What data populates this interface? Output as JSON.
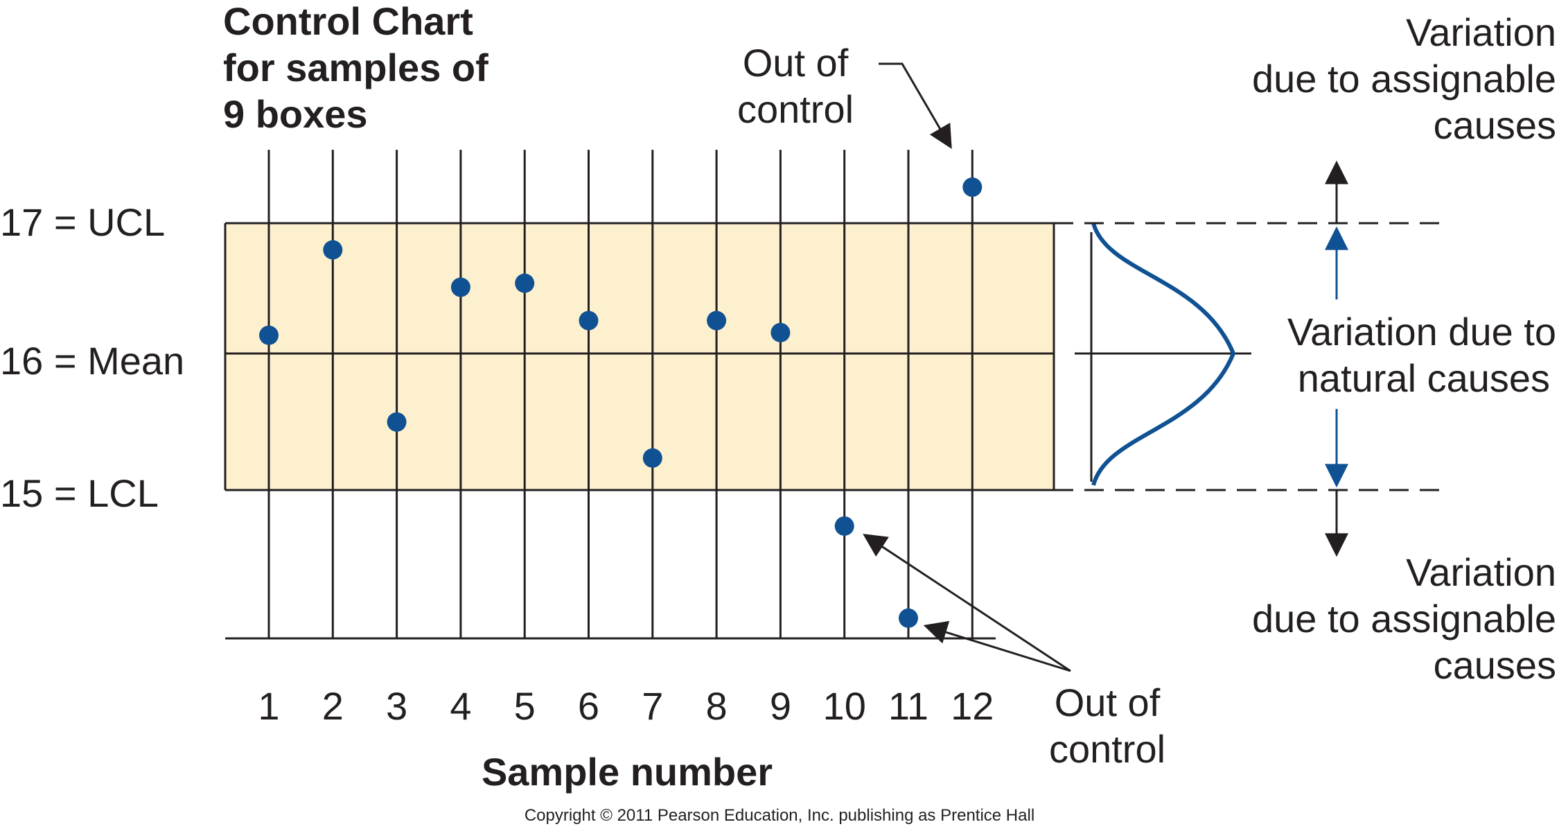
{
  "chart_data": {
    "type": "scatter",
    "title_lines": [
      "Control Chart",
      "for samples of",
      "9 boxes"
    ],
    "xlabel": "Sample number",
    "categories": [
      "1",
      "2",
      "3",
      "4",
      "5",
      "6",
      "7",
      "8",
      "9",
      "10",
      "11",
      "12"
    ],
    "values": [
      16.16,
      16.8,
      15.51,
      16.52,
      16.55,
      16.27,
      15.24,
      16.27,
      16.18,
      14.73,
      14.04,
      17.27
    ],
    "ylim": [
      13.9,
      17.55
    ],
    "control_limits": [
      {
        "value": 17,
        "label": "17 = UCL"
      },
      {
        "value": 16,
        "label": "16 = Mean"
      },
      {
        "value": 15,
        "label": "15 = LCL"
      }
    ],
    "legend_position": "none",
    "grid": true,
    "annotations": {
      "out_of_control_top": [
        "Out of",
        "control"
      ],
      "out_of_control_bottom": [
        "Out of",
        "control"
      ],
      "variation_assignable_top": [
        "Variation",
        "due to assignable",
        "causes"
      ],
      "variation_natural": [
        "Variation due to",
        "natural causes"
      ],
      "variation_assignable_bottom": [
        "Variation",
        "due to assignable",
        "causes"
      ]
    },
    "colors": {
      "band": "#fdf0cf",
      "points": "#0f5192",
      "curve": "#0f5192",
      "lines": "#231f20"
    }
  },
  "copyright": "Copyright © 2011 Pearson Education, Inc. publishing as Prentice Hall"
}
